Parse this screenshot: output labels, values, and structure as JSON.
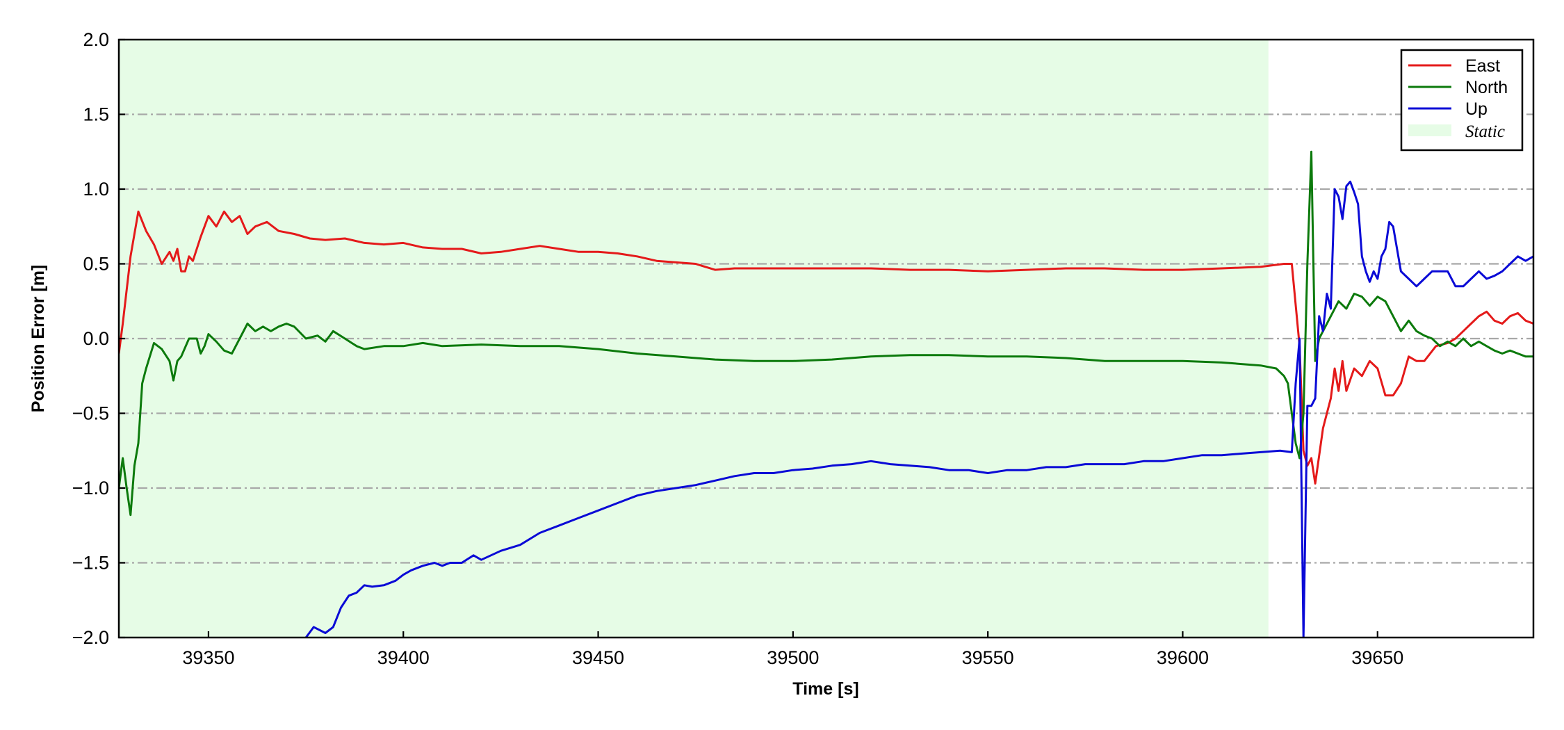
{
  "chart_data": {
    "type": "line",
    "title": "",
    "xlabel": "Time [s]",
    "ylabel": "Position Error [m]",
    "xlim": [
      39327,
      39690
    ],
    "ylim": [
      -2.0,
      2.0
    ],
    "xticks": [
      39350,
      39400,
      39450,
      39500,
      39550,
      39600,
      39650
    ],
    "xtick_labels": [
      "39350",
      "39400",
      "39450",
      "39500",
      "39550",
      "39600",
      "39650"
    ],
    "yticks": [
      -2.0,
      -1.5,
      -1.0,
      -0.5,
      0.0,
      0.5,
      1.0,
      1.5,
      2.0
    ],
    "ytick_labels": [
      "−2.0",
      "−1.5",
      "−1.0",
      "−0.5",
      "0.0",
      "0.5",
      "1.0",
      "1.5",
      "2.0"
    ],
    "grid": "horizontal dash-dot",
    "legend_position": "top-right",
    "static_region": {
      "label": "Static",
      "x_start": 39327,
      "x_end": 39622,
      "color": "#e6fce6"
    },
    "series": [
      {
        "name": "East",
        "color": "#e41a1a",
        "x": [
          39327,
          39328,
          39330,
          39332,
          39334,
          39336,
          39338,
          39340,
          39341,
          39342,
          39343,
          39344,
          39345,
          39346,
          39348,
          39350,
          39352,
          39354,
          39356,
          39358,
          39360,
          39362,
          39365,
          39368,
          39372,
          39376,
          39380,
          39385,
          39390,
          39395,
          39400,
          39405,
          39410,
          39415,
          39420,
          39425,
          39430,
          39435,
          39440,
          39445,
          39450,
          39455,
          39460,
          39465,
          39470,
          39475,
          39480,
          39485,
          39490,
          39500,
          39510,
          39520,
          39530,
          39540,
          39550,
          39560,
          39570,
          39580,
          39590,
          39600,
          39610,
          39620,
          39626,
          39628,
          39630,
          39631,
          39632,
          39633,
          39634,
          39636,
          39638,
          39639,
          39640,
          39641,
          39642,
          39644,
          39646,
          39648,
          39650,
          39652,
          39654,
          39656,
          39658,
          39660,
          39662,
          39665,
          39668,
          39670,
          39672,
          39674,
          39676,
          39678,
          39680,
          39682,
          39684,
          39686,
          39688,
          39690
        ],
        "y": [
          -0.1,
          0.1,
          0.55,
          0.85,
          0.72,
          0.63,
          0.5,
          0.58,
          0.52,
          0.6,
          0.45,
          0.45,
          0.55,
          0.52,
          0.68,
          0.82,
          0.75,
          0.85,
          0.78,
          0.82,
          0.7,
          0.75,
          0.78,
          0.72,
          0.7,
          0.67,
          0.66,
          0.67,
          0.64,
          0.63,
          0.64,
          0.61,
          0.6,
          0.6,
          0.57,
          0.58,
          0.6,
          0.62,
          0.6,
          0.58,
          0.58,
          0.57,
          0.55,
          0.52,
          0.51,
          0.5,
          0.46,
          0.47,
          0.47,
          0.47,
          0.47,
          0.47,
          0.46,
          0.46,
          0.45,
          0.46,
          0.47,
          0.47,
          0.46,
          0.46,
          0.47,
          0.48,
          0.5,
          0.5,
          -0.05,
          -0.75,
          -0.85,
          -0.8,
          -0.97,
          -0.6,
          -0.4,
          -0.2,
          -0.35,
          -0.15,
          -0.35,
          -0.2,
          -0.25,
          -0.15,
          -0.2,
          -0.38,
          -0.38,
          -0.3,
          -0.12,
          -0.15,
          -0.15,
          -0.05,
          -0.03,
          0.0,
          0.05,
          0.1,
          0.15,
          0.18,
          0.12,
          0.1,
          0.15,
          0.17,
          0.12,
          0.1
        ]
      },
      {
        "name": "North",
        "color": "#0c7a0c",
        "x": [
          39327,
          39328,
          39329,
          39330,
          39331,
          39332,
          39333,
          39334,
          39336,
          39338,
          39340,
          39341,
          39342,
          39343,
          39345,
          39347,
          39348,
          39349,
          39350,
          39352,
          39354,
          39356,
          39358,
          39360,
          39362,
          39364,
          39366,
          39368,
          39370,
          39372,
          39375,
          39378,
          39380,
          39382,
          39385,
          39388,
          39390,
          39395,
          39400,
          39405,
          39410,
          39420,
          39430,
          39440,
          39450,
          39460,
          39470,
          39480,
          39490,
          39500,
          39510,
          39520,
          39530,
          39540,
          39550,
          39560,
          39570,
          39580,
          39590,
          39600,
          39610,
          39620,
          39624,
          39626,
          39627,
          39628,
          39629,
          39630,
          39631,
          39632,
          39633,
          39634,
          39635,
          39636,
          39638,
          39640,
          39642,
          39644,
          39646,
          39648,
          39650,
          39652,
          39654,
          39656,
          39658,
          39660,
          39662,
          39664,
          39666,
          39668,
          39670,
          39672,
          39674,
          39676,
          39678,
          39680,
          39682,
          39684,
          39686,
          39688,
          39690
        ],
        "y": [
          -1.0,
          -0.8,
          -1.0,
          -1.18,
          -0.85,
          -0.7,
          -0.3,
          -0.2,
          -0.03,
          -0.07,
          -0.15,
          -0.28,
          -0.15,
          -0.12,
          0.0,
          0.0,
          -0.1,
          -0.05,
          0.03,
          -0.02,
          -0.08,
          -0.1,
          0.0,
          0.1,
          0.05,
          0.08,
          0.05,
          0.08,
          0.1,
          0.08,
          0.0,
          0.02,
          -0.02,
          0.05,
          0.0,
          -0.05,
          -0.07,
          -0.05,
          -0.05,
          -0.03,
          -0.05,
          -0.04,
          -0.05,
          -0.05,
          -0.07,
          -0.1,
          -0.12,
          -0.14,
          -0.15,
          -0.15,
          -0.14,
          -0.12,
          -0.11,
          -0.11,
          -0.12,
          -0.12,
          -0.13,
          -0.15,
          -0.15,
          -0.15,
          -0.16,
          -0.18,
          -0.2,
          -0.25,
          -0.3,
          -0.5,
          -0.7,
          -0.8,
          -0.5,
          0.5,
          1.25,
          -0.15,
          0.0,
          0.05,
          0.15,
          0.25,
          0.2,
          0.3,
          0.28,
          0.22,
          0.28,
          0.25,
          0.15,
          0.05,
          0.12,
          0.05,
          0.02,
          0.0,
          -0.05,
          -0.02,
          -0.05,
          0.0,
          -0.05,
          -0.02,
          -0.05,
          -0.08,
          -0.1,
          -0.08,
          -0.1,
          -0.12,
          -0.12
        ]
      },
      {
        "name": "Up",
        "color": "#0a0ad6",
        "x": [
          39375,
          39377,
          39380,
          39382,
          39384,
          39386,
          39388,
          39390,
          39392,
          39395,
          39398,
          39400,
          39402,
          39405,
          39408,
          39410,
          39412,
          39415,
          39418,
          39420,
          39425,
          39430,
          39435,
          39440,
          39445,
          39450,
          39455,
          39460,
          39465,
          39470,
          39475,
          39480,
          39485,
          39490,
          39495,
          39500,
          39505,
          39510,
          39515,
          39520,
          39525,
          39530,
          39535,
          39540,
          39545,
          39550,
          39555,
          39560,
          39565,
          39570,
          39575,
          39580,
          39585,
          39590,
          39595,
          39600,
          39605,
          39610,
          39615,
          39620,
          39625,
          39628,
          39629,
          39630,
          39631,
          39632,
          39633,
          39634,
          39635,
          39636,
          39637,
          39638,
          39639,
          39640,
          39641,
          39642,
          39643,
          39644,
          39645,
          39646,
          39647,
          39648,
          39649,
          39650,
          39651,
          39652,
          39653,
          39654,
          39656,
          39658,
          39660,
          39662,
          39664,
          39666,
          39668,
          39670,
          39672,
          39674,
          39676,
          39678,
          39680,
          39682,
          39684,
          39686,
          39688,
          39690
        ],
        "y": [
          -2.0,
          -1.93,
          -1.97,
          -1.93,
          -1.8,
          -1.72,
          -1.7,
          -1.65,
          -1.66,
          -1.65,
          -1.62,
          -1.58,
          -1.55,
          -1.52,
          -1.5,
          -1.52,
          -1.5,
          -1.5,
          -1.45,
          -1.48,
          -1.42,
          -1.38,
          -1.3,
          -1.25,
          -1.2,
          -1.15,
          -1.1,
          -1.05,
          -1.02,
          -1.0,
          -0.98,
          -0.95,
          -0.92,
          -0.9,
          -0.9,
          -0.88,
          -0.87,
          -0.85,
          -0.84,
          -0.82,
          -0.84,
          -0.85,
          -0.86,
          -0.88,
          -0.88,
          -0.9,
          -0.88,
          -0.88,
          -0.86,
          -0.86,
          -0.84,
          -0.84,
          -0.84,
          -0.82,
          -0.82,
          -0.8,
          -0.78,
          -0.78,
          -0.77,
          -0.76,
          -0.75,
          -0.76,
          -0.3,
          0.0,
          -2.0,
          -0.45,
          -0.45,
          -0.4,
          0.15,
          0.05,
          0.3,
          0.2,
          1.0,
          0.95,
          0.8,
          1.02,
          1.05,
          0.98,
          0.9,
          0.55,
          0.45,
          0.38,
          0.45,
          0.4,
          0.55,
          0.6,
          0.78,
          0.75,
          0.45,
          0.4,
          0.35,
          0.4,
          0.45,
          0.45,
          0.45,
          0.35,
          0.35,
          0.4,
          0.45,
          0.4,
          0.42,
          0.45,
          0.5,
          0.55,
          0.52,
          0.55
        ]
      }
    ]
  }
}
